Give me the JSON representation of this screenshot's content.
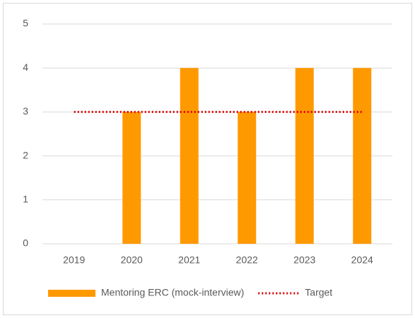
{
  "chart_data": {
    "type": "bar",
    "categories": [
      "2019",
      "2020",
      "2021",
      "2022",
      "2023",
      "2024"
    ],
    "series": [
      {
        "name": "Mentoring ERC (mock-interview)",
        "type": "bar",
        "color": "#ff9900",
        "values": [
          0,
          3,
          4,
          3,
          4,
          4
        ]
      },
      {
        "name": "Target",
        "type": "line",
        "color": "#e00000",
        "dotted": true,
        "values": [
          3,
          3,
          3,
          3,
          3,
          3
        ]
      }
    ],
    "ylim": [
      0,
      5
    ],
    "yticks": [
      0,
      1,
      2,
      3,
      4,
      5
    ],
    "grid": true,
    "legend": "bottom"
  }
}
